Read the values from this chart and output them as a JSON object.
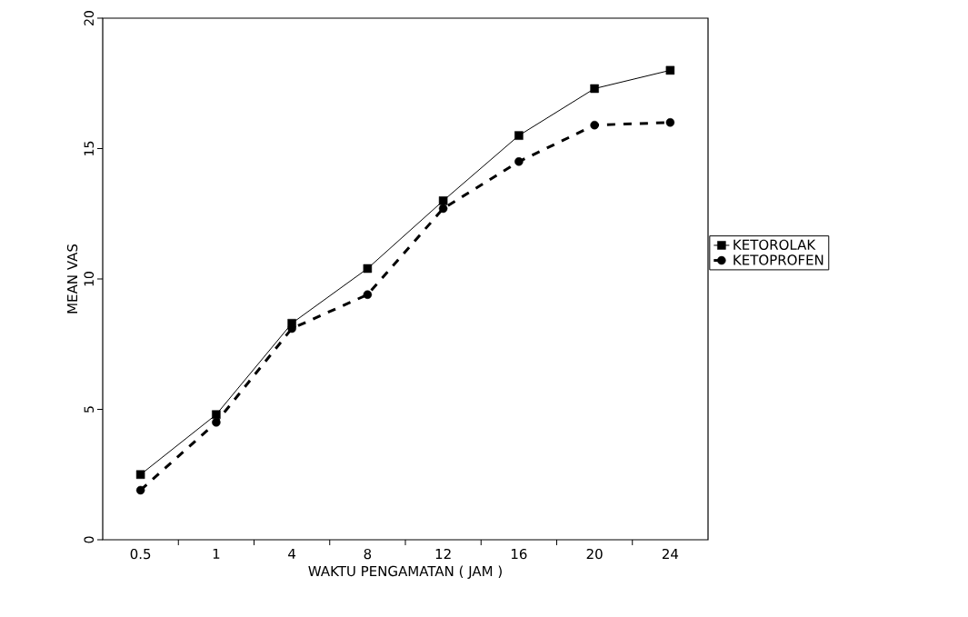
{
  "chart_data": {
    "type": "line",
    "xlabel": "WAKTU PENGAMATAN ( JAM )",
    "ylabel": "MEAN VAS",
    "categories": [
      "0.5",
      "1",
      "4",
      "8",
      "12",
      "16",
      "20",
      "24"
    ],
    "ylim": [
      0,
      20
    ],
    "yticks": [
      0,
      5,
      10,
      15,
      20
    ],
    "grid": false,
    "legend": "right",
    "series": [
      {
        "name": "KETOROLAK",
        "color": "#000000",
        "marker": "square",
        "line_style": "solid",
        "values": [
          2.5,
          4.8,
          8.3,
          10.4,
          13.0,
          15.5,
          17.3,
          18.0
        ]
      },
      {
        "name": "KETOPROFEN",
        "color": "#000000",
        "marker": "circle",
        "line_style": "dashed",
        "values": [
          1.9,
          4.5,
          8.1,
          9.4,
          12.7,
          14.5,
          15.9,
          16.0
        ]
      }
    ]
  }
}
